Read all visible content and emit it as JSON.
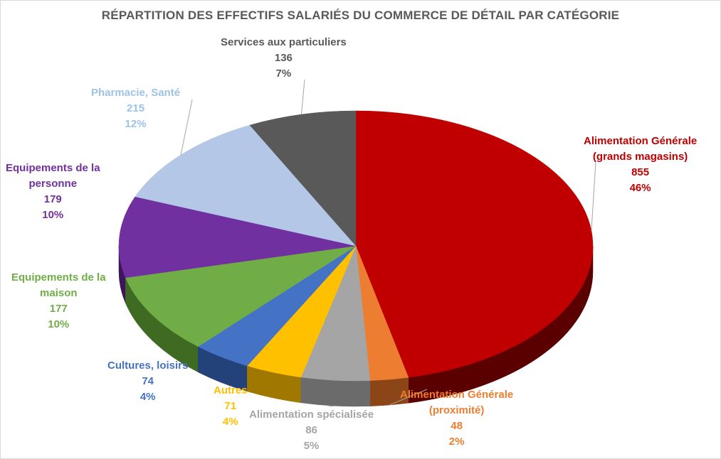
{
  "chart_data": {
    "type": "pie",
    "title": "RÉPARTITION DES EFFECTIFS SALARIÉS DU COMMERCE  DE DÉTAIL PAR CATÉGORIE",
    "slices": [
      {
        "id": "alim-gen-gm",
        "name": "Alimentation Générale (grands magasins)",
        "name_lines": [
          "Alimentation Générale",
          "(grands magasins)"
        ],
        "value": 855,
        "percent": "46%",
        "color": "#C00000",
        "side_color": "#5a0000",
        "text_color": "#C00000"
      },
      {
        "id": "alim-gen-prox",
        "name": "Alimentation Générale (proximité)",
        "name_lines": [
          "Alimentation Générale",
          "(proximité)"
        ],
        "value": 48,
        "percent": "2%",
        "color": "#ED7D31",
        "side_color": "#8c4516",
        "text_color": "#ED7D31"
      },
      {
        "id": "alim-spec",
        "name": "Alimentation spécialisée",
        "name_lines": [
          "Alimentation spécialisée"
        ],
        "value": 86,
        "percent": "5%",
        "color": "#A5A5A5",
        "side_color": "#6b6b6b",
        "text_color": "#A5A5A5"
      },
      {
        "id": "autres",
        "name": "Autres",
        "name_lines": [
          "Autres"
        ],
        "value": 71,
        "percent": "4%",
        "color": "#FFC000",
        "side_color": "#a07800",
        "text_color": "#FFC000"
      },
      {
        "id": "cultures",
        "name": "Cultures, loisirs",
        "name_lines": [
          "Cultures, loisirs"
        ],
        "value": 74,
        "percent": "4%",
        "color": "#4472C4",
        "side_color": "#24427a",
        "text_color": "#4472C4"
      },
      {
        "id": "equip-maison",
        "name": "Equipements de la maison",
        "name_lines": [
          "Equipements de la",
          "maison"
        ],
        "value": 177,
        "percent": "10%",
        "color": "#70AD47",
        "side_color": "#3f6a22",
        "text_color": "#70AD47"
      },
      {
        "id": "equip-personne",
        "name": "Equipements de la personne",
        "name_lines": [
          "Equipements de la",
          "personne"
        ],
        "value": 179,
        "percent": "10%",
        "color": "#7030A0",
        "side_color": "#3e145c",
        "text_color": "#7030A0"
      },
      {
        "id": "pharmacie",
        "name": "Pharmacie, Santé",
        "name_lines": [
          "Pharmacie, Santé"
        ],
        "value": 215,
        "percent": "12%",
        "color": "#B4C7E7",
        "side_color": "#7486a6",
        "text_color": "#9DC3E6"
      },
      {
        "id": "services",
        "name": "Services aux particuliers",
        "name_lines": [
          "Services aux particuliers"
        ],
        "value": 136,
        "percent": "7%",
        "color": "#595959",
        "side_color": "#2f2f2f",
        "text_color": "#595959"
      }
    ]
  }
}
